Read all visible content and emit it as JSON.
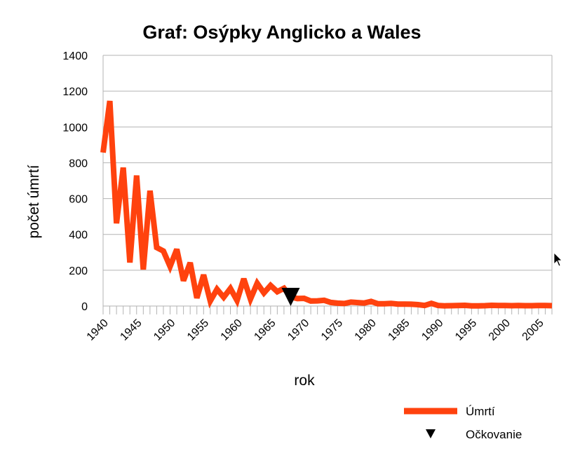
{
  "chart_data": {
    "type": "line",
    "title": "Graf: Osýpky Anglicko a Wales",
    "xlabel": "rok",
    "ylabel": "počet úmrtí",
    "xlim": [
      1940,
      2007
    ],
    "ylim": [
      0,
      1400
    ],
    "y_ticks": [
      0,
      200,
      400,
      600,
      800,
      1000,
      1200,
      1400
    ],
    "x_tick_labels": [
      1940,
      1945,
      1950,
      1955,
      1960,
      1965,
      1970,
      1975,
      1980,
      1985,
      1990,
      1995,
      2000,
      2005
    ],
    "grid": true,
    "legend_position": "bottom-right",
    "series": [
      {
        "name": "Úmrtí",
        "color": "#ff420e",
        "x": [
          1940,
          1941,
          1942,
          1943,
          1944,
          1945,
          1946,
          1947,
          1948,
          1949,
          1950,
          1951,
          1952,
          1953,
          1954,
          1955,
          1956,
          1957,
          1958,
          1959,
          1960,
          1961,
          1962,
          1963,
          1964,
          1965,
          1966,
          1967,
          1968,
          1969,
          1970,
          1971,
          1972,
          1973,
          1974,
          1975,
          1976,
          1977,
          1978,
          1979,
          1980,
          1981,
          1982,
          1983,
          1984,
          1985,
          1986,
          1987,
          1988,
          1989,
          1990,
          1991,
          1992,
          1993,
          1994,
          1995,
          1996,
          1997,
          1998,
          1999,
          2000,
          2001,
          2002,
          2003,
          2004,
          2005,
          2006,
          2007
        ],
        "values": [
          857,
          1145,
          462,
          773,
          243,
          729,
          204,
          644,
          327,
          307,
          221,
          317,
          141,
          242,
          45,
          174,
          28,
          94,
          49,
          98,
          31,
          152,
          39,
          127,
          73,
          115,
          80,
          99,
          51,
          42,
          43,
          28,
          29,
          32,
          20,
          16,
          14,
          22,
          19,
          17,
          26,
          13,
          13,
          15,
          11,
          11,
          10,
          8,
          3,
          15,
          3,
          1,
          2,
          3,
          4,
          1,
          1,
          2,
          4,
          3,
          3,
          2,
          3,
          2,
          2,
          3,
          3,
          2
        ]
      },
      {
        "name": "Očkovanie",
        "color": "#000000",
        "marker": "triangle-down",
        "x": [
          1968
        ],
        "values": [
          51
        ]
      }
    ]
  }
}
